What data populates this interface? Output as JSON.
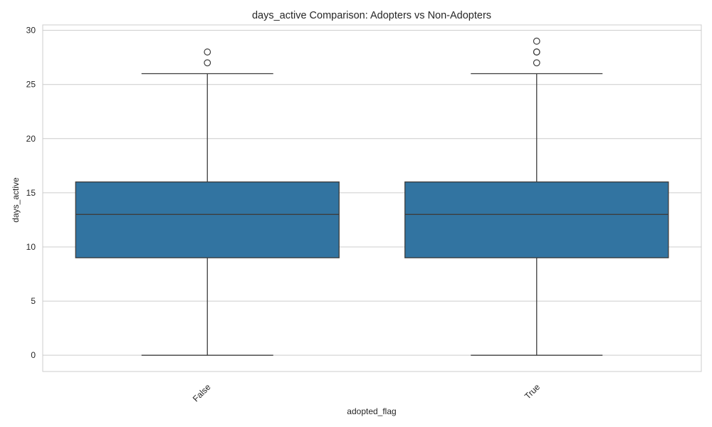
{
  "chart_data": {
    "type": "box",
    "title": "days_active Comparison: Adopters vs Non-Adopters",
    "xlabel": "adopted_flag",
    "ylabel": "days_active",
    "categories": [
      "False",
      "True"
    ],
    "ylim": [
      -1.5,
      30.5
    ],
    "yticks": [
      0,
      5,
      10,
      15,
      20,
      25,
      30
    ],
    "grid": true,
    "boxes": [
      {
        "category": "False",
        "whisker_low": 0,
        "q1": 9,
        "median": 13,
        "q3": 16,
        "whisker_high": 26,
        "outliers": [
          27,
          28
        ]
      },
      {
        "category": "True",
        "whisker_low": 0,
        "q1": 9,
        "median": 13,
        "q3": 16,
        "whisker_high": 26,
        "outliers": [
          27,
          28,
          28,
          29
        ]
      }
    ],
    "colors": {
      "box_fill": "#3274a1",
      "line": "#3d3d3d",
      "grid": "#cccccc",
      "frame": "#cccccc",
      "text": "#262626"
    }
  }
}
